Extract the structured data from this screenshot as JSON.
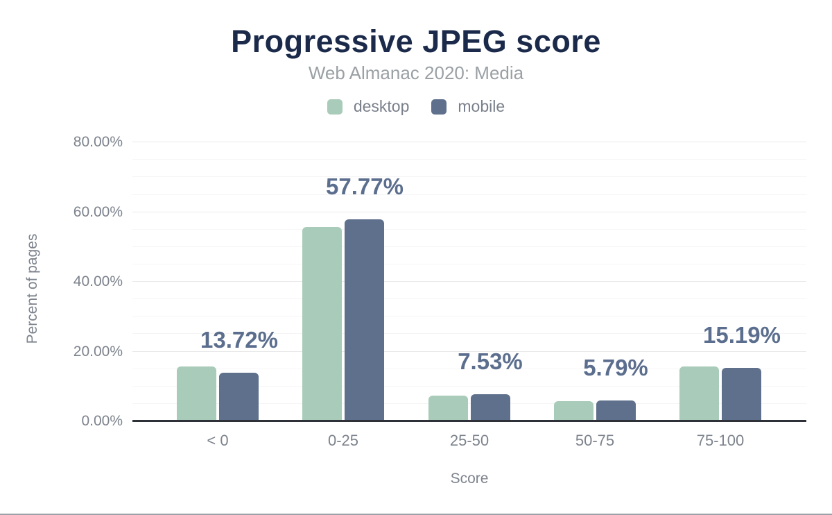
{
  "header": {
    "title": "Progressive JPEG score",
    "subtitle": "Web Almanac 2020: Media"
  },
  "chart_data": {
    "type": "bar",
    "title": "Progressive JPEG score",
    "subtitle": "Web Almanac 2020: Media",
    "categories": [
      "< 0",
      "0-25",
      "25-50",
      "50-75",
      "75-100"
    ],
    "series": [
      {
        "name": "desktop",
        "color": "#A9CBB9",
        "values": [
          15.5,
          55.5,
          7.2,
          5.6,
          15.6
        ]
      },
      {
        "name": "mobile",
        "color": "#5F708C",
        "values": [
          13.72,
          57.77,
          7.53,
          5.79,
          15.19
        ]
      }
    ],
    "value_labels": {
      "series": "mobile",
      "labels": [
        "13.72%",
        "57.77%",
        "7.53%",
        "5.79%",
        "15.19%"
      ]
    },
    "xlabel": "Score",
    "ylabel": "Percent of pages",
    "ylim": [
      0,
      80
    ],
    "yticks": [
      {
        "value": 0,
        "label": "0.00%"
      },
      {
        "value": 20,
        "label": "20.00%"
      },
      {
        "value": 40,
        "label": "40.00%"
      },
      {
        "value": 60,
        "label": "60.00%"
      },
      {
        "value": 80,
        "label": "80.00%"
      }
    ],
    "grid": {
      "minor_step": 5,
      "major_step": 20,
      "minor_color": "#f5f5f5",
      "major_color": "#e9e9e9"
    },
    "legend_position": "top",
    "axis_line_color": "#2e3238",
    "value_label_color": "#5b6e8e",
    "title_color": "#1b2a4a",
    "subtitle_color": "#9aa0a4",
    "tick_label_color": "#7d838d"
  }
}
